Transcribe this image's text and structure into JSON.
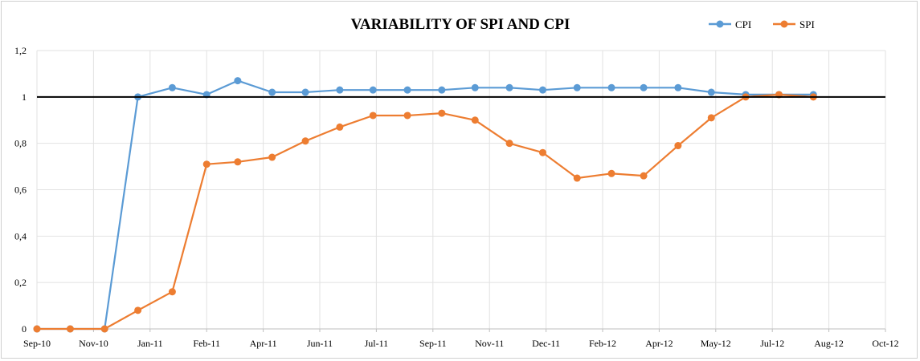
{
  "chart_data": {
    "type": "line",
    "title": "VARIABILITY  OF SPI AND CPI",
    "xlabel": "",
    "ylabel": "",
    "ylim": [
      0,
      1.2
    ],
    "y_ticks": [
      "0",
      "0,2",
      "0,4",
      "0,6",
      "0,8",
      "1",
      "1,2"
    ],
    "y_tick_values": [
      0,
      0.2,
      0.4,
      0.6,
      0.8,
      1.0,
      1.2
    ],
    "x_tick_labels": [
      "Sep-10",
      "Nov-10",
      "Jan-11",
      "Feb-11",
      "Apr-11",
      "Jun-11",
      "Jul-11",
      "Sep-11",
      "Nov-11",
      "Dec-11",
      "Feb-12",
      "Apr-12",
      "May-12",
      "Jul-12",
      "Aug-12",
      "Oct-12"
    ],
    "x_tick_dates": [
      "2010-09-01",
      "2010-10-22",
      "2010-12-12",
      "2011-02-01",
      "2011-03-24",
      "2011-05-14",
      "2011-07-04",
      "2011-08-24",
      "2011-10-14",
      "2011-12-04",
      "2012-01-24",
      "2012-03-15",
      "2012-05-05",
      "2012-06-25",
      "2012-08-15",
      "2012-10-05"
    ],
    "grid": true,
    "legend": "top-right",
    "reference_line": 1.0,
    "x": [
      "2010-09-01",
      "2010-10-01",
      "2010-11-01",
      "2010-12-01",
      "2011-01-01",
      "2011-02-01",
      "2011-03-01",
      "2011-04-01",
      "2011-05-01",
      "2011-06-01",
      "2011-07-01",
      "2011-08-01",
      "2011-09-01",
      "2011-10-01",
      "2011-11-01",
      "2011-12-01",
      "2012-01-01",
      "2012-02-01",
      "2012-03-01",
      "2012-04-01",
      "2012-05-01",
      "2012-06-01",
      "2012-07-01",
      "2012-08-01"
    ],
    "series": [
      {
        "name": "CPI",
        "color": "#5b9bd5",
        "values": [
          0,
          0,
          0,
          1.0,
          1.04,
          1.01,
          1.07,
          1.02,
          1.02,
          1.03,
          1.03,
          1.03,
          1.03,
          1.04,
          1.04,
          1.03,
          1.04,
          1.04,
          1.04,
          1.04,
          1.02,
          1.01,
          1.01,
          1.01
        ]
      },
      {
        "name": "SPI",
        "color": "#ed7d31",
        "values": [
          0,
          0,
          0,
          0.08,
          0.16,
          0.71,
          0.72,
          0.74,
          0.81,
          0.87,
          0.92,
          0.92,
          0.93,
          0.9,
          0.8,
          0.76,
          0.65,
          0.67,
          0.66,
          0.79,
          0.91,
          1.0,
          1.01,
          1.0
        ]
      }
    ]
  }
}
